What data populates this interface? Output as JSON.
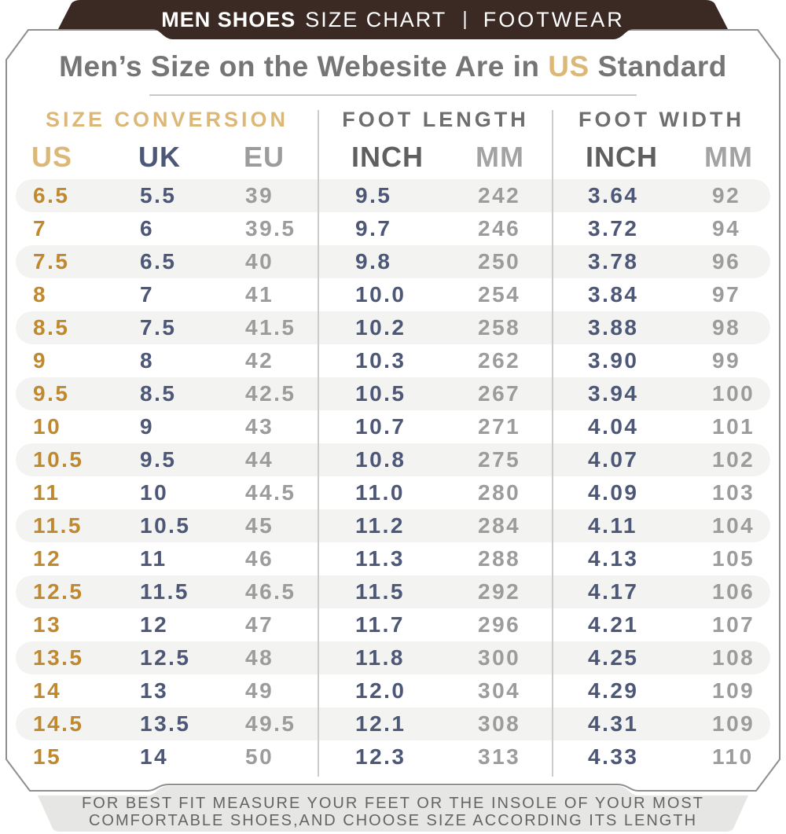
{
  "banner": {
    "brand": "MEN SHOES",
    "subtitle": "SIZE CHART",
    "separator": "|",
    "category": "FOOTWEAR"
  },
  "title": {
    "pre": "Men’s Size on the Webesite Are in ",
    "highlight": "US",
    "post": " Standard"
  },
  "table": {
    "group_headers": [
      "SIZE CONVERSION",
      "FOOT LENGTH",
      "FOOT WIDTH"
    ],
    "columns": [
      "US",
      "UK",
      "EU",
      "INCH",
      "MM",
      "INCH",
      "MM"
    ],
    "rows": [
      [
        "6.5",
        "5.5",
        "39",
        "9.5",
        "242",
        "3.64",
        "92"
      ],
      [
        "7",
        "6",
        "39.5",
        "9.7",
        "246",
        "3.72",
        "94"
      ],
      [
        "7.5",
        "6.5",
        "40",
        "9.8",
        "250",
        "3.78",
        "96"
      ],
      [
        "8",
        "7",
        "41",
        "10.0",
        "254",
        "3.84",
        "97"
      ],
      [
        "8.5",
        "7.5",
        "41.5",
        "10.2",
        "258",
        "3.88",
        "98"
      ],
      [
        "9",
        "8",
        "42",
        "10.3",
        "262",
        "3.90",
        "99"
      ],
      [
        "9.5",
        "8.5",
        "42.5",
        "10.5",
        "267",
        "3.94",
        "100"
      ],
      [
        "10",
        "9",
        "43",
        "10.7",
        "271",
        "4.04",
        "101"
      ],
      [
        "10.5",
        "9.5",
        "44",
        "10.8",
        "275",
        "4.07",
        "102"
      ],
      [
        "11",
        "10",
        "44.5",
        "11.0",
        "280",
        "4.09",
        "103"
      ],
      [
        "11.5",
        "10.5",
        "45",
        "11.2",
        "284",
        "4.11",
        "104"
      ],
      [
        "12",
        "11",
        "46",
        "11.3",
        "288",
        "4.13",
        "105"
      ],
      [
        "12.5",
        "11.5",
        "46.5",
        "11.5",
        "292",
        "4.17",
        "106"
      ],
      [
        "13",
        "12",
        "47",
        "11.7",
        "296",
        "4.21",
        "107"
      ],
      [
        "13.5",
        "12.5",
        "48",
        "11.8",
        "300",
        "4.25",
        "108"
      ],
      [
        "14",
        "13",
        "49",
        "12.0",
        "304",
        "4.29",
        "109"
      ],
      [
        "14.5",
        "13.5",
        "49.5",
        "12.1",
        "308",
        "4.31",
        "109"
      ],
      [
        "15",
        "14",
        "50",
        "12.3",
        "313",
        "4.33",
        "110"
      ]
    ]
  },
  "footer": {
    "line1": "FOR BEST FIT MEASURE YOUR FEET OR THE INSOLE OF YOUR MOST",
    "line2": "COMFORTABLE SHOES,AND CHOOSE SIZE ACCORDING ITS LENGTH"
  },
  "colors": {
    "banner_bg": "#3b2a24",
    "banner_text": "#ffffff",
    "accent_tan": "#dcb878",
    "accent_gold": "#c1892d",
    "navy": "#4d5778",
    "gray_value": "#9c9c9c",
    "gray_header_dark": "#5f5f5f",
    "group_header_gray": "#6e6e6e",
    "title_gray": "#757575",
    "row_stripe": "#f3f3f1",
    "card_border": "#8f8f8f",
    "footer_bg": "#e6e6e4",
    "footer_text": "#646464"
  },
  "chart_data": {
    "type": "table",
    "title": "Men’s Size on the Webesite Are in US Standard",
    "group_headers": [
      "SIZE CONVERSION",
      "FOOT LENGTH",
      "FOOT WIDTH"
    ],
    "columns": [
      "US",
      "UK",
      "EU",
      "FOOT LENGTH INCH",
      "FOOT LENGTH MM",
      "FOOT WIDTH INCH",
      "FOOT WIDTH MM"
    ],
    "rows": [
      [
        "6.5",
        "5.5",
        "39",
        "9.5",
        "242",
        "3.64",
        "92"
      ],
      [
        "7",
        "6",
        "39.5",
        "9.7",
        "246",
        "3.72",
        "94"
      ],
      [
        "7.5",
        "6.5",
        "40",
        "9.8",
        "250",
        "3.78",
        "96"
      ],
      [
        "8",
        "7",
        "41",
        "10.0",
        "254",
        "3.84",
        "97"
      ],
      [
        "8.5",
        "7.5",
        "41.5",
        "10.2",
        "258",
        "3.88",
        "98"
      ],
      [
        "9",
        "8",
        "42",
        "10.3",
        "262",
        "3.90",
        "99"
      ],
      [
        "9.5",
        "8.5",
        "42.5",
        "10.5",
        "267",
        "3.94",
        "100"
      ],
      [
        "10",
        "9",
        "43",
        "10.7",
        "271",
        "4.04",
        "101"
      ],
      [
        "10.5",
        "9.5",
        "44",
        "10.8",
        "275",
        "4.07",
        "102"
      ],
      [
        "11",
        "10",
        "44.5",
        "11.0",
        "280",
        "4.09",
        "103"
      ],
      [
        "11.5",
        "10.5",
        "45",
        "11.2",
        "284",
        "4.11",
        "104"
      ],
      [
        "12",
        "11",
        "46",
        "11.3",
        "288",
        "4.13",
        "105"
      ],
      [
        "12.5",
        "11.5",
        "46.5",
        "11.5",
        "292",
        "4.17",
        "106"
      ],
      [
        "13",
        "12",
        "47",
        "11.7",
        "296",
        "4.21",
        "107"
      ],
      [
        "13.5",
        "12.5",
        "48",
        "11.8",
        "300",
        "4.25",
        "108"
      ],
      [
        "14",
        "13",
        "49",
        "12.0",
        "304",
        "4.29",
        "109"
      ],
      [
        "14.5",
        "13.5",
        "49.5",
        "12.1",
        "308",
        "4.31",
        "109"
      ],
      [
        "15",
        "14",
        "50",
        "12.3",
        "313",
        "4.33",
        "110"
      ]
    ]
  }
}
